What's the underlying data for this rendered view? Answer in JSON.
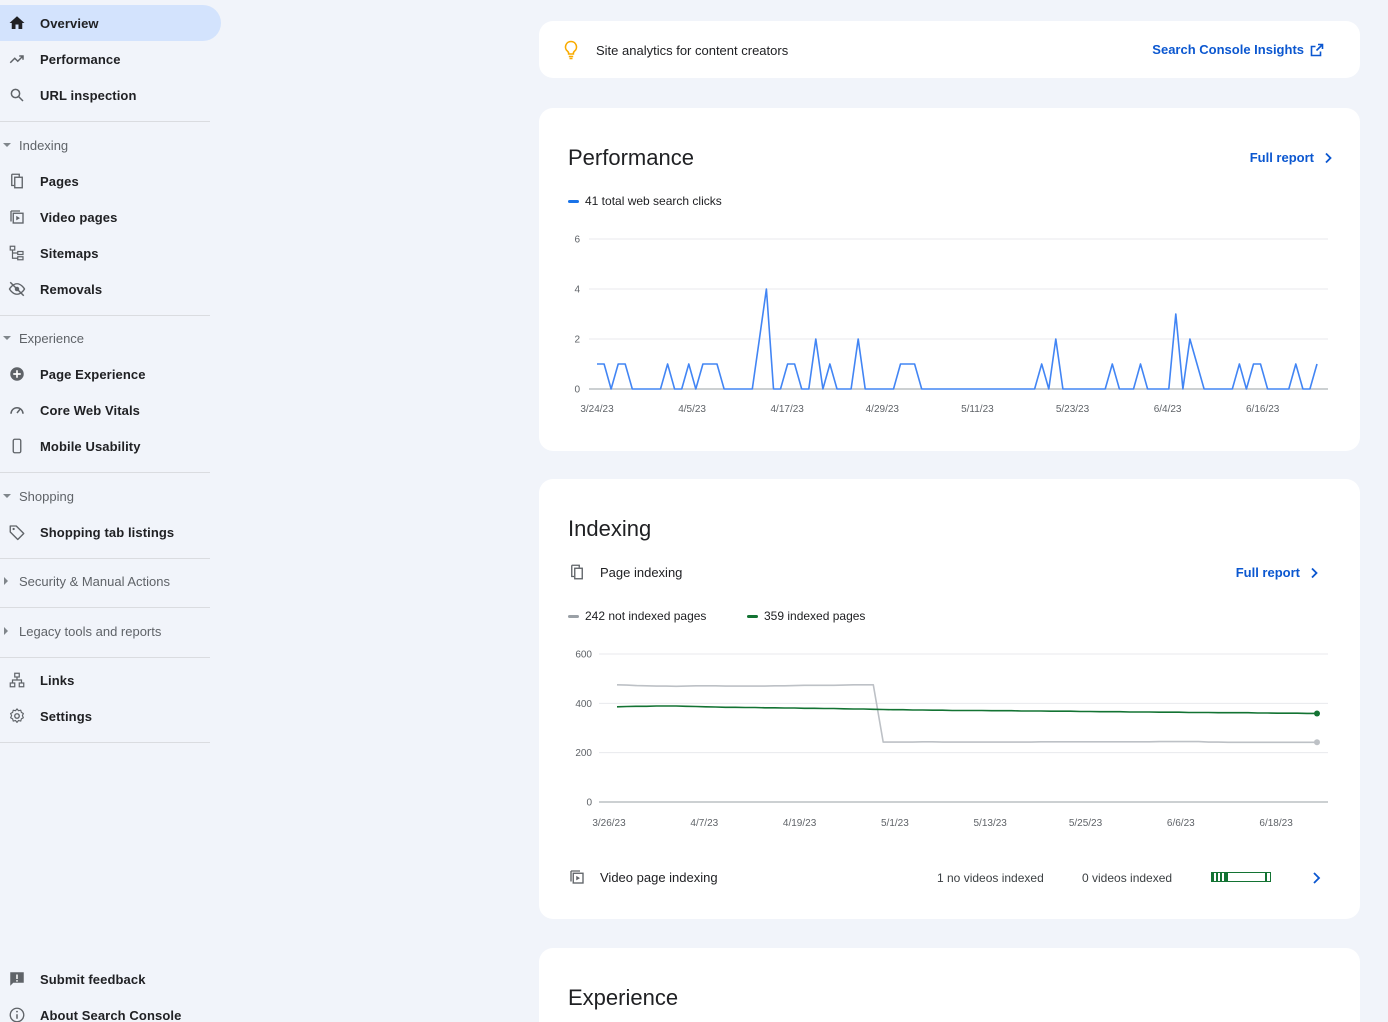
{
  "sidebar": {
    "items": {
      "overview": "Overview",
      "performance": "Performance",
      "url_inspection": "URL inspection",
      "pages": "Pages",
      "video_pages": "Video pages",
      "sitemaps": "Sitemaps",
      "removals": "Removals",
      "page_experience": "Page Experience",
      "core_web_vitals": "Core Web Vitals",
      "mobile_usability": "Mobile Usability",
      "shopping_tab_listings": "Shopping tab listings",
      "links": "Links",
      "settings": "Settings",
      "submit_feedback": "Submit feedback",
      "about": "About Search Console"
    },
    "sections": {
      "indexing": "Indexing",
      "experience": "Experience",
      "shopping": "Shopping",
      "security": "Security & Manual Actions",
      "legacy": "Legacy tools and reports"
    }
  },
  "insights": {
    "text": "Site analytics for content creators",
    "link": "Search Console Insights"
  },
  "performance": {
    "title": "Performance",
    "full_report": "Full report",
    "legend": "41 total web search clicks"
  },
  "indexing": {
    "title": "Indexing",
    "page_indexing": "Page indexing",
    "full_report": "Full report",
    "legend_not_indexed": "242 not indexed pages",
    "legend_indexed": "359 indexed pages",
    "video_page_indexing": "Video page indexing",
    "no_videos_indexed": "1 no videos indexed",
    "videos_indexed": "0 videos indexed",
    "video_indexed_fraction": 0
  },
  "experience": {
    "title": "Experience"
  },
  "colors": {
    "clicks": "#4285f4",
    "indexed": "#137333",
    "not_indexed": "#bdc1c6",
    "link": "#0b57d0",
    "active_bg": "#d3e3fd"
  },
  "chart_data": [
    {
      "type": "line",
      "title": "Performance",
      "ylim": [
        0,
        6
      ],
      "yticks": [
        0,
        2,
        4,
        6
      ],
      "xticklabels": [
        "3/24/23",
        "4/5/23",
        "4/17/23",
        "4/29/23",
        "5/11/23",
        "5/23/23",
        "6/4/23",
        "6/16/23"
      ],
      "x_start": "3/24/23",
      "series": [
        {
          "name": "41 total web search clicks",
          "values": [
            1,
            1,
            0,
            1,
            1,
            0,
            0,
            0,
            0,
            0,
            1,
            0,
            0,
            1,
            0,
            1,
            1,
            1,
            0,
            0,
            0,
            0,
            0,
            2,
            4,
            0,
            0,
            1,
            1,
            0,
            0,
            2,
            0,
            1,
            0,
            0,
            0,
            2,
            0,
            0,
            0,
            0,
            0,
            1,
            1,
            1,
            0,
            0,
            0,
            0,
            0,
            0,
            0,
            0,
            0,
            0,
            0,
            0,
            0,
            0,
            0,
            0,
            0,
            1,
            0,
            2,
            0,
            0,
            0,
            0,
            0,
            0,
            0,
            1,
            0,
            0,
            0,
            1,
            0,
            0,
            0,
            0,
            3,
            0,
            2,
            1,
            0,
            0,
            0,
            0,
            0,
            1,
            0,
            1,
            1,
            0,
            0,
            0,
            0,
            1,
            0,
            0,
            1
          ]
        }
      ]
    },
    {
      "type": "line",
      "title": "Page indexing",
      "ylim": [
        0,
        600
      ],
      "yticks": [
        0,
        200,
        400,
        600
      ],
      "xticklabels": [
        "3/26/23",
        "4/7/23",
        "4/19/23",
        "5/1/23",
        "5/13/23",
        "5/25/23",
        "6/6/23",
        "6/18/23"
      ],
      "x_start": "3/26/23",
      "series": [
        {
          "name": "242 not indexed pages",
          "values": [
            475,
            474,
            472,
            471,
            470,
            470,
            469,
            470,
            471,
            471,
            471,
            470,
            470,
            470,
            470,
            470,
            471,
            471,
            472,
            473,
            473,
            473,
            473,
            474,
            475,
            475,
            475,
            243,
            243,
            243,
            243,
            244,
            244,
            243,
            243,
            243,
            243,
            243,
            243,
            243,
            243,
            243,
            243,
            244,
            244,
            244,
            244,
            244,
            244,
            244,
            244,
            244,
            244,
            244,
            244,
            245,
            245,
            245,
            245,
            245,
            243,
            243,
            242,
            242,
            242,
            242,
            242,
            242,
            242,
            242,
            242,
            242
          ]
        },
        {
          "name": "359 indexed pages",
          "values": [
            386,
            387,
            388,
            388,
            389,
            389,
            389,
            388,
            387,
            386,
            385,
            384,
            384,
            383,
            383,
            382,
            382,
            381,
            381,
            380,
            380,
            379,
            379,
            378,
            377,
            377,
            376,
            375,
            374,
            374,
            373,
            373,
            372,
            372,
            371,
            371,
            371,
            371,
            370,
            370,
            370,
            369,
            369,
            369,
            368,
            368,
            368,
            367,
            367,
            366,
            366,
            366,
            365,
            365,
            365,
            364,
            364,
            364,
            363,
            363,
            363,
            362,
            362,
            362,
            362,
            361,
            361,
            360,
            360,
            360,
            359,
            359
          ]
        }
      ]
    }
  ]
}
